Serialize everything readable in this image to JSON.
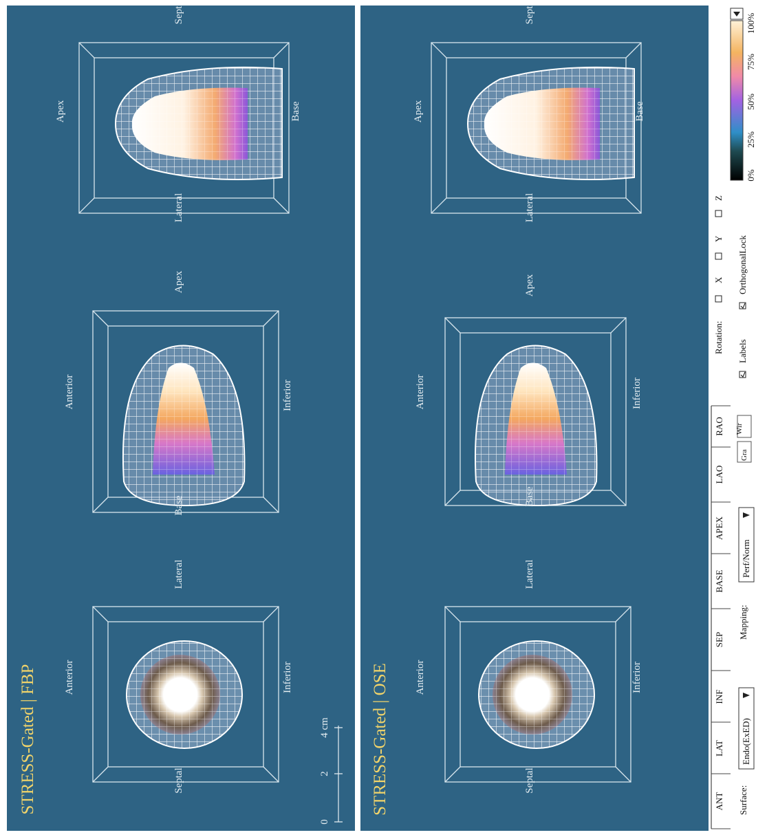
{
  "panels": [
    {
      "title": "STRESS-Gated | FBP",
      "labels": [
        "Anterior",
        "Septal",
        "Inferior",
        "Lateral",
        "Anterior",
        "Base",
        "Inferior",
        "Apex",
        "Apex",
        "Lateral",
        "Base",
        "Sept"
      ],
      "scale": [
        "0",
        "2",
        "4 cm"
      ]
    },
    {
      "title": "STRESS-Gated | OSE",
      "labels": [
        "Anterior",
        "Septal",
        "Inferior",
        "Lateral",
        "Anterior",
        "Base",
        "Inferior",
        "Apex",
        "Apex",
        "Lateral",
        "Base",
        "Sept"
      ]
    }
  ],
  "controls": {
    "tabs": [
      "ANT",
      "LAT",
      "INF",
      "SEP",
      "BASE",
      "APEX",
      "LAO",
      "RAO"
    ],
    "surface_label": "Surface:",
    "surface_value": "Endo(ExED)",
    "mapping_label": "Mapping:",
    "mapping_value": "Perf/Norm",
    "gra": "Gra",
    "wir": "Wir",
    "rotation_label": "Rotation:",
    "axes": [
      "X",
      "Y",
      "Z"
    ],
    "labels_checkbox": "Labels",
    "lock_checkbox": "OrthogonalLock",
    "colorbar_ticks": [
      "0%",
      "25%",
      "50%",
      "75%",
      "100%"
    ]
  }
}
